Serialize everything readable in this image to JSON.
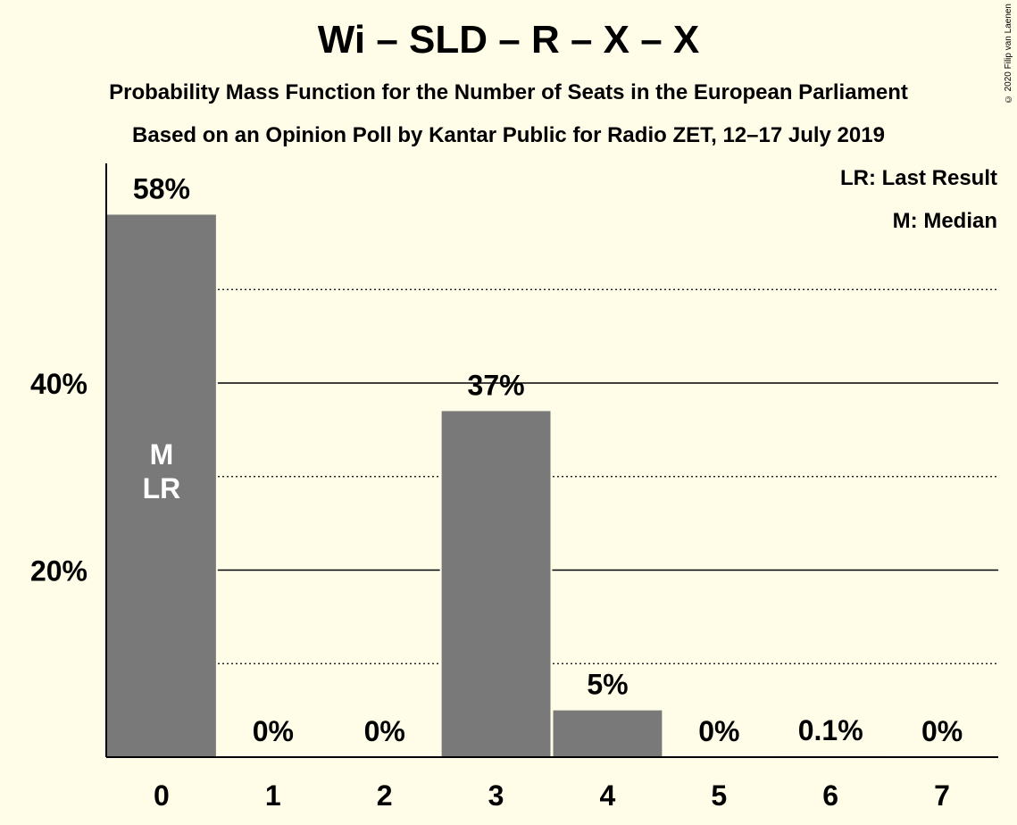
{
  "header": {
    "title": "Wi – SLD – R – X – X",
    "subtitle1": "Probability Mass Function for the Number of Seats in the European Parliament",
    "subtitle2": "Based on an Opinion Poll by Kantar Public for Radio ZET, 12–17 July 2019",
    "copyright": "© 2020 Filip van Laenen"
  },
  "legend": {
    "last_result": "LR: Last Result",
    "median": "M: Median"
  },
  "colors": {
    "background": "#FFFDE7",
    "bar": "#797979",
    "in_bar_text": "#FFFFFF"
  },
  "chart_data": {
    "type": "bar",
    "categories": [
      "0",
      "1",
      "2",
      "3",
      "4",
      "5",
      "6",
      "7"
    ],
    "values": [
      58,
      0,
      0,
      37,
      5,
      0,
      0.1,
      0
    ],
    "data_labels": [
      "58%",
      "0%",
      "0%",
      "37%",
      "5%",
      "0%",
      "0.1%",
      "0%"
    ],
    "ylim": [
      0,
      63
    ],
    "yticks": [
      20,
      40
    ],
    "ytick_labels": [
      "20%",
      "40%"
    ],
    "minor_gridlines": [
      10,
      30,
      50
    ],
    "bar_annotations": [
      {
        "category": "0",
        "lines": [
          "M",
          "LR"
        ]
      }
    ],
    "xlabel": "",
    "ylabel": "",
    "grid": true,
    "legend_position": "top-right"
  }
}
